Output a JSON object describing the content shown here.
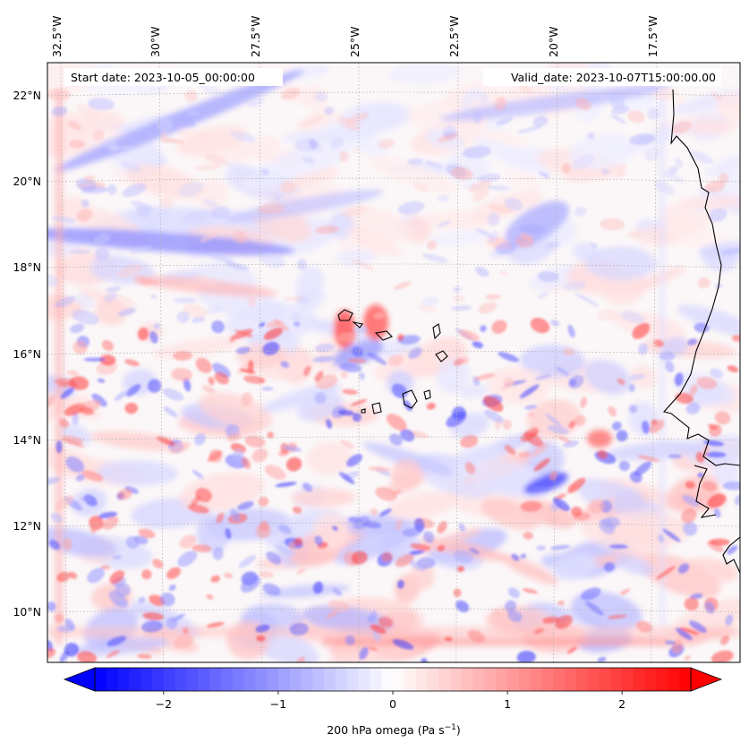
{
  "map": {
    "annotations": {
      "start_date": "Start date: 2023-10-05_00:00:00",
      "valid_date": "Valid_date: 2023-10-07T15:00:00.00"
    },
    "lon_labels": [
      "32.5°W",
      "30°W",
      "27.5°W",
      "25°W",
      "22.5°W",
      "20°W",
      "17.5°W"
    ],
    "lat_labels": [
      "22°N",
      "20°N",
      "18°N",
      "16°N",
      "14°N",
      "12°N",
      "10°N"
    ],
    "variable": "200 hPa omega",
    "field_description": "Mottled blue/red field of omega values, near zero over most of the domain"
  },
  "colorbar": {
    "label_prefix": "200 hPa omega (Pa s",
    "label_exponent": "−1",
    "label_suffix": ")",
    "ticks": [
      "−2",
      "−1",
      "0",
      "1",
      "2"
    ],
    "tick_values": [
      -2,
      -1,
      0,
      1,
      2
    ],
    "range": [
      -2.6,
      2.6
    ],
    "colormap": "bwr",
    "extend": "both",
    "low_color": "#0000ff",
    "mid_color": "#ffffff",
    "high_color": "#ff0000"
  }
}
